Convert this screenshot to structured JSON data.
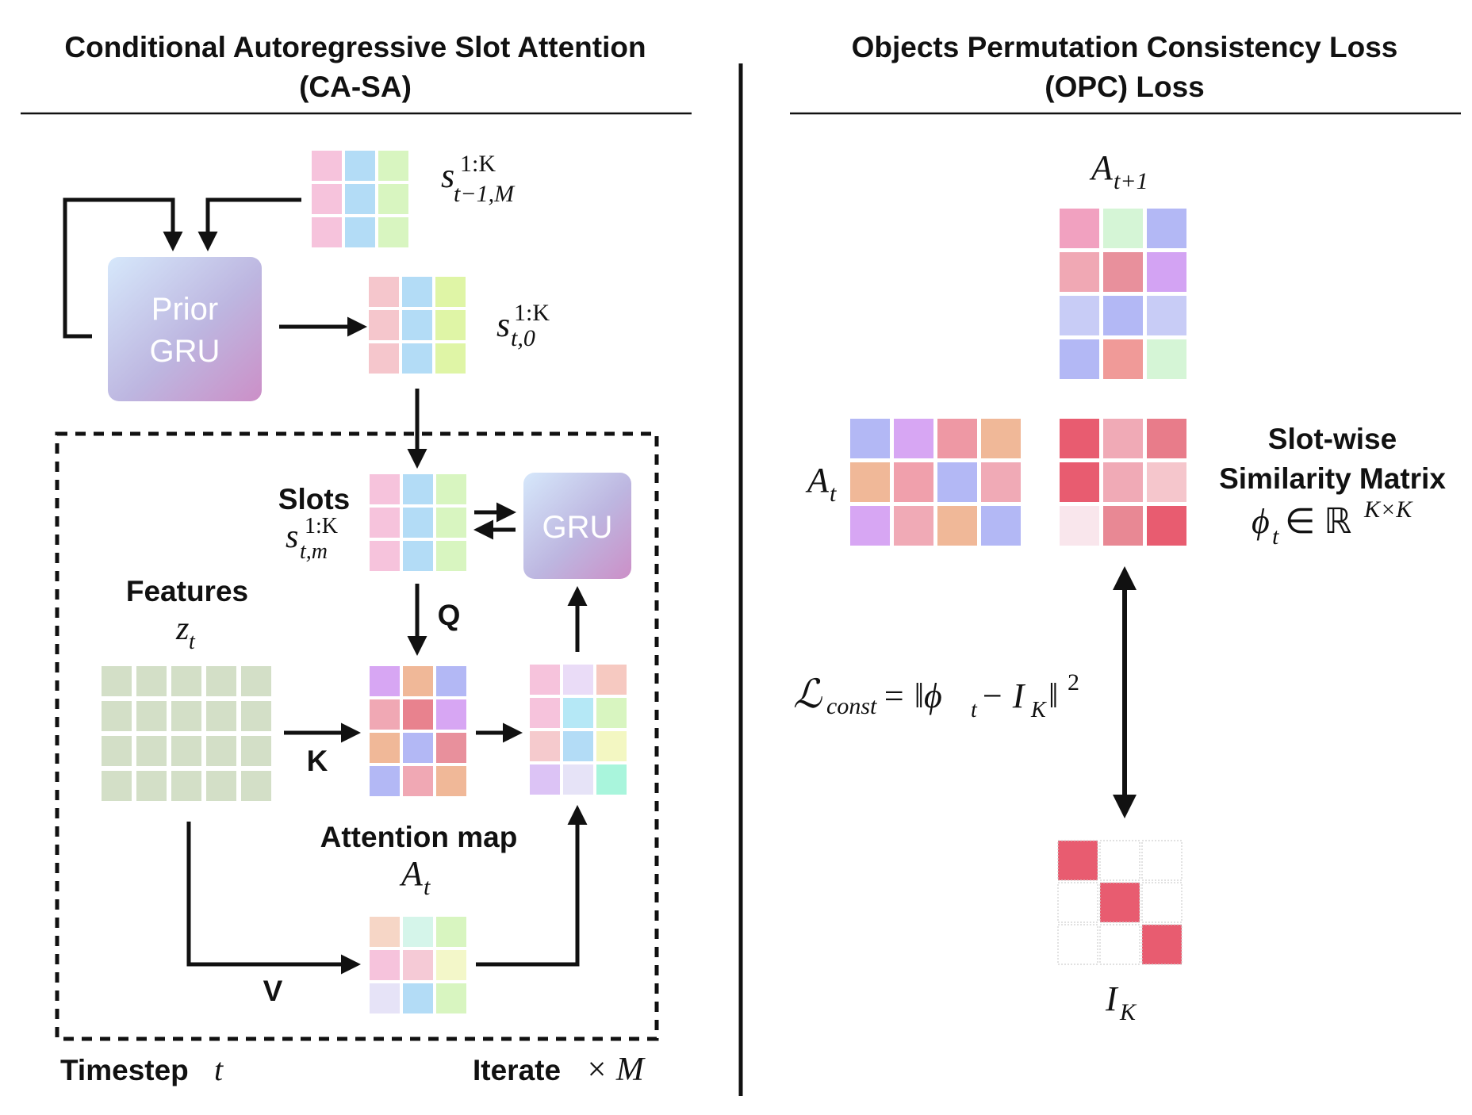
{
  "left_panel": {
    "title_line1": "Conditional Autoregressive Slot Attention",
    "title_line2": "(CA-SA)",
    "slots_prev_label": "s",
    "slots_prev_sup": "1:K",
    "slots_prev_sub": "t−1,M",
    "prior_gru_line1": "Prior",
    "prior_gru_line2": "GRU",
    "slots_init_label": "s",
    "slots_init_sup": "1:K",
    "slots_init_sub": "t,0",
    "slots_title": "Slots",
    "slots_math": "s",
    "slots_sup": "1:K",
    "slots_sub": "t,m",
    "gru_label": "GRU",
    "features_title": "Features",
    "features_math": "z",
    "features_sub": "t",
    "q_label": "Q",
    "k_label": "K",
    "v_label": "V",
    "attention_title": "Attention map",
    "attention_math": "A",
    "attention_sub": "t",
    "timestep_label": "Timestep",
    "timestep_math": "t",
    "iterate_label": "Iterate",
    "iterate_math": "× M"
  },
  "right_panel": {
    "title_line1": "Objects Permutation Consistency Loss",
    "title_line2": "(OPC) Loss",
    "a_next_math": "A",
    "a_next_sub": "t+1",
    "a_t_math": "A",
    "a_t_sub": "t",
    "similarity_line1": "Slot-wise",
    "similarity_line2": "Similarity Matrix",
    "similarity_math": "ϕ",
    "similarity_sub": "t",
    "similarity_rest": " ∈ ℝ",
    "similarity_sup": "K×K",
    "loss_symbol": "ℒ",
    "loss_sub": "const",
    "loss_rest": " = ‖ϕ",
    "loss_rest_sub": "t",
    "loss_minus": " − I",
    "loss_minus_sub": "K",
    "loss_close": "‖",
    "loss_sup": "2",
    "identity_math": "I",
    "identity_sub": "K"
  },
  "colors": {
    "pink": "#f6c3dc",
    "blue": "#b3dcf6",
    "green": "#d8f5c0",
    "red": "#e85c70",
    "features": "#d3dfc7",
    "gru_grad_start": "#cfe3fa",
    "gru_grad_end": "#cc8fc7"
  },
  "grids": {
    "slots_prev": [
      [
        "#f6c3dc",
        "#b3dcf6",
        "#d8f5c0"
      ],
      [
        "#f6c3dc",
        "#b3dcf6",
        "#d8f5c0"
      ],
      [
        "#f6c3dc",
        "#b3dcf6",
        "#d8f5c0"
      ]
    ],
    "slots_init": [
      [
        "#f5c6cc",
        "#b3dcf6",
        "#dff5a6"
      ],
      [
        "#f5c6cc",
        "#b3dcf6",
        "#dff5a6"
      ],
      [
        "#f5c6cc",
        "#b3dcf6",
        "#dff5a6"
      ]
    ],
    "slots_iter": [
      [
        "#f6c3dc",
        "#b3dcf6",
        "#d8f5c0"
      ],
      [
        "#f6c3dc",
        "#b3dcf6",
        "#d8f5c0"
      ],
      [
        "#f6c3dc",
        "#b3dcf6",
        "#d8f5c0"
      ]
    ],
    "attention_left": [
      [
        "#d7a6f3",
        "#f0b898",
        "#b3b8f5"
      ],
      [
        "#f0a8b4",
        "#e8828e",
        "#d7a6f3"
      ],
      [
        "#f0b898",
        "#b3b8f5",
        "#e8909c"
      ],
      [
        "#b3b8f5",
        "#f0a8b4",
        "#f0b898"
      ]
    ],
    "updates": [
      [
        "#f6c3dc",
        "#eadcf7",
        "#f6c9c1"
      ],
      [
        "#f6c3dc",
        "#b5e8f6",
        "#d8f5c0"
      ],
      [
        "#f5cacd",
        "#b3dcf6",
        "#f3f7c2"
      ],
      [
        "#dcc3f5",
        "#e6e3f7",
        "#a9f5dc"
      ]
    ],
    "values": [
      [
        "#f6d6c6",
        "#d5f5ea",
        "#d8f5c0"
      ],
      [
        "#f6c3dc",
        "#f5cad6",
        "#f3f7c9"
      ],
      [
        "#e6e3f7",
        "#b3dcf6",
        "#d8f5c0"
      ]
    ],
    "a_next": [
      [
        "#f1a1c0",
        "#d5f5d6",
        "#b3b8f5"
      ],
      [
        "#f0a8b4",
        "#e8909c",
        "#d3a3f3"
      ],
      [
        "#c8ccf6",
        "#b3b8f5",
        "#c8ccf6"
      ],
      [
        "#b3b8f5",
        "#f09a98",
        "#d5f5d6"
      ]
    ],
    "a_t": [
      [
        "#b3b8f5",
        "#d7a6f3",
        "#ee98a4",
        "#f0b898"
      ],
      [
        "#f0b898",
        "#f0a0ac",
        "#b3b8f5",
        "#f0aab6"
      ],
      [
        "#d7a6f3",
        "#f0aab6",
        "#f0b898",
        "#b3b8f5"
      ]
    ],
    "similarity": [
      [
        "#e85c70",
        "#f0aab6",
        "#e87c8a"
      ],
      [
        "#e85c70",
        "#f0aab6",
        "#f5c6cc"
      ],
      [
        "#f9e6ec",
        "#e88894",
        "#e85c70"
      ]
    ],
    "identity": [
      [
        "#e85c70",
        "#ffffff",
        "#ffffff"
      ],
      [
        "#ffffff",
        "#e85c70",
        "#ffffff"
      ],
      [
        "#ffffff",
        "#ffffff",
        "#e85c70"
      ]
    ]
  }
}
